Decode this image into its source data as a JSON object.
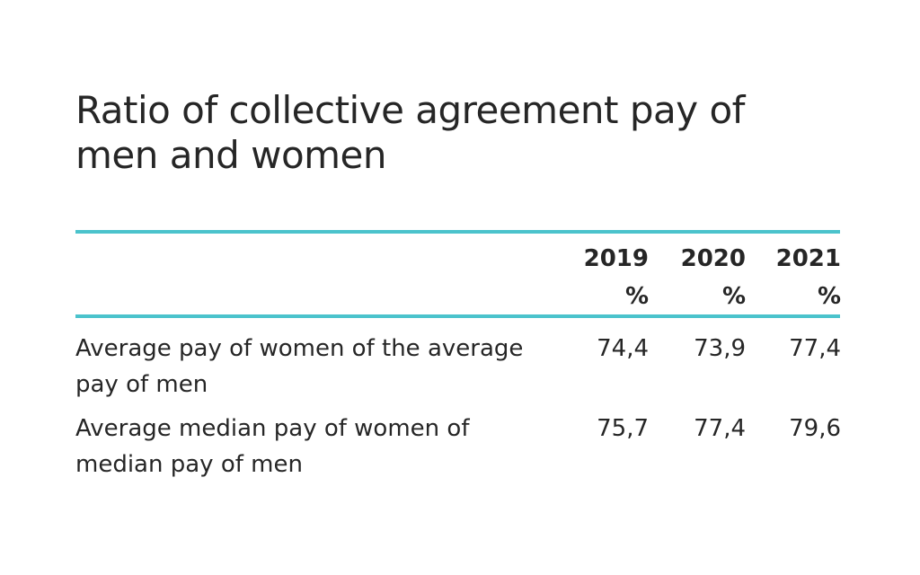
{
  "title": "Ratio of collective agreement pay of men and women",
  "table": {
    "columns": [
      {
        "year": "2019",
        "unit": "%"
      },
      {
        "year": "2020",
        "unit": "%"
      },
      {
        "year": "2021",
        "unit": "%"
      }
    ],
    "rows": [
      {
        "label": "Average pay of women of the average pay of men",
        "values": [
          "74,4",
          "73,9",
          "77,4"
        ]
      },
      {
        "label": "Average median pay of women of median pay of men",
        "values": [
          "75,7",
          "77,4",
          "79,6"
        ]
      }
    ]
  },
  "colors": {
    "accent": "#4bc3cc",
    "text": "#262626",
    "background": "#ffffff"
  }
}
